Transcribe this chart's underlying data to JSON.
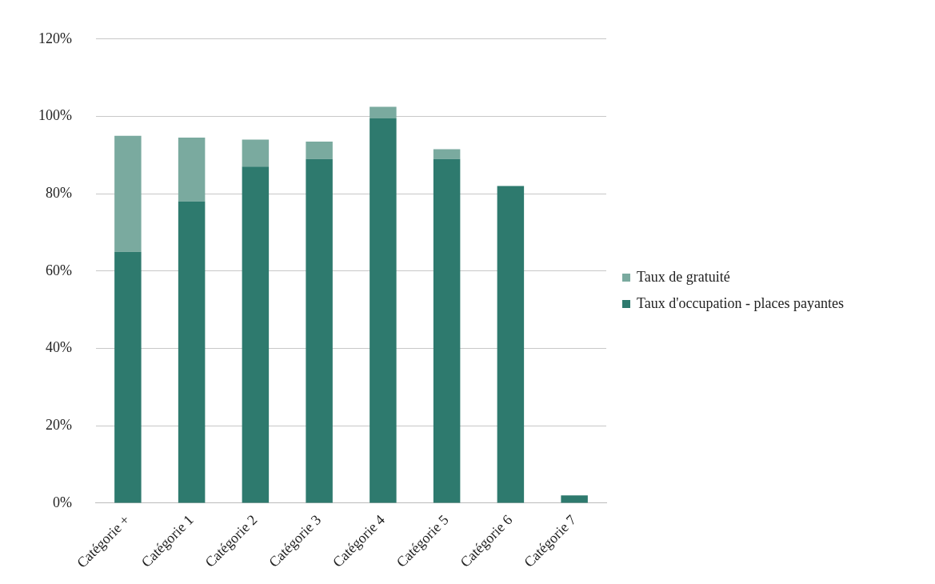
{
  "chart_data": {
    "type": "bar",
    "stacked": true,
    "categories": [
      "Catégorie +",
      "Catégorie 1",
      "Catégorie 2",
      "Catégorie 3",
      "Catégorie 4",
      "Catégorie 5",
      "Catégorie 6",
      "Catégorie 7"
    ],
    "series": [
      {
        "name": "Taux d'occupation - places payantes",
        "color": "#2e7a6e",
        "values": [
          65,
          78,
          87,
          89,
          99.5,
          89,
          82,
          2
        ]
      },
      {
        "name": "Taux de gratuité",
        "color": "#7aaa9f",
        "values": [
          30,
          16.5,
          7,
          4.5,
          3,
          2.5,
          0,
          0
        ]
      }
    ],
    "ylim": [
      0,
      120
    ],
    "yticks": [
      {
        "value": 0,
        "label": "0%"
      },
      {
        "value": 20,
        "label": "20%"
      },
      {
        "value": 40,
        "label": "40%"
      },
      {
        "value": 60,
        "label": "60%"
      },
      {
        "value": 80,
        "label": "80%"
      },
      {
        "value": 100,
        "label": "100%"
      },
      {
        "value": 120,
        "label": "120%"
      }
    ],
    "grid": "y",
    "legend": "right"
  }
}
